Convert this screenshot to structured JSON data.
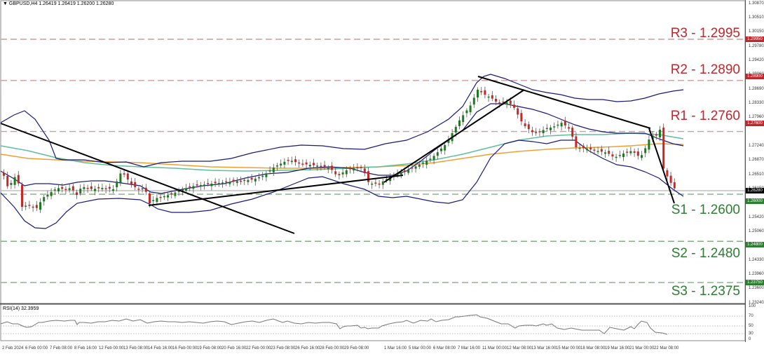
{
  "header": {
    "symbol_line": "GBPUSD,H4  1.26419 1.26419 1.26200 1.26280"
  },
  "rsi_panel": {
    "title": "RSI(14) 32.3959",
    "levels": [
      "100",
      "70",
      "50",
      "30",
      "0"
    ]
  },
  "colors": {
    "resistance": "#c0272d",
    "support": "#2e7d32",
    "bull_candle": "#1e7a1e",
    "bear_candle": "#c62828",
    "bollinger": "#1a1a7a",
    "ma_fast": "#5fbf9a",
    "ma_slow": "#f0a030",
    "trendline": "#000000",
    "current_price_box": "#000000",
    "rsi_line": "#777777"
  },
  "levels": [
    {
      "name": "R3",
      "label": "R3 - 1.2995",
      "price": 1.2995,
      "axis": "1.29950",
      "type": "resistance"
    },
    {
      "name": "R2",
      "label": "R2 - 1.2890",
      "price": 1.289,
      "axis": "1.28900",
      "type": "resistance"
    },
    {
      "name": "R1",
      "label": "R1 - 1.2760",
      "price": 1.276,
      "axis": "1.27600",
      "type": "resistance"
    },
    {
      "name": "S1",
      "label": "S1 - 1.2600",
      "price": 1.26,
      "axis": "1.26000",
      "type": "support"
    },
    {
      "name": "S2",
      "label": "S2 - 1.2480",
      "price": 1.248,
      "axis": "1.24800",
      "type": "support"
    },
    {
      "name": "S3",
      "label": "S3 - 1.2375",
      "price": 1.2375,
      "axis": "1.23750",
      "type": "support"
    }
  ],
  "current_price": {
    "value": 1.2628,
    "axis": "1.26280"
  },
  "price_axis_ticks": [
    "1.30870",
    "1.30510",
    "1.30150",
    "1.29780",
    "1.29420",
    "1.29060",
    "1.28690",
    "1.28330",
    "1.27960",
    "1.27240",
    "1.26870",
    "1.26510",
    "1.26150",
    "1.25780",
    "1.25420",
    "1.25060",
    "1.24690",
    "1.24330",
    "1.23960",
    "1.23600",
    "1.23240"
  ],
  "time_axis": [
    "2 Feb 2024",
    "6 Feb 00:00",
    "7 Feb 08:00",
    "8 Feb 16:00",
    "12 Feb 00:00",
    "13 Feb 08:00",
    "14 Feb 16:00",
    "16 Feb 00:00",
    "19 Feb 08:00",
    "20 Feb 16:00",
    "22 Feb 00:00",
    "23 Feb 08:00",
    "26 Feb 16:00",
    "28 Feb 00:00",
    "29 Feb 08:00",
    "1 Mar 16:00",
    "5 Mar 00:00",
    "6 Mar 08:00",
    "7 Mar 16:00",
    "11 Mar 00:00",
    "12 Mar 08:00",
    "13 Mar 16:00",
    "15 Mar 00:00",
    "18 Mar 08:00",
    "19 Mar 16:00",
    "21 Mar 00:00",
    "22 Mar 08:00"
  ],
  "chart_data": {
    "type": "candlestick",
    "title": "GBPUSD,H4",
    "ohlc_header": {
      "open": 1.26419,
      "high": 1.26419,
      "low": 1.262,
      "close": 1.2628
    },
    "xlabel": "",
    "ylabel": "",
    "ylim": [
      1.2324,
      1.3087
    ],
    "categories": [
      "2 Feb 2024",
      "6 Feb 00:00",
      "7 Feb 08:00",
      "8 Feb 16:00",
      "12 Feb 00:00",
      "13 Feb 08:00",
      "14 Feb 16:00",
      "16 Feb 00:00",
      "19 Feb 08:00",
      "20 Feb 16:00",
      "22 Feb 00:00",
      "23 Feb 08:00",
      "26 Feb 16:00",
      "28 Feb 00:00",
      "29 Feb 08:00",
      "1 Mar 16:00",
      "5 Mar 00:00",
      "6 Mar 08:00",
      "7 Mar 16:00",
      "11 Mar 00:00",
      "12 Mar 08:00",
      "13 Mar 16:00",
      "15 Mar 00:00",
      "18 Mar 08:00",
      "19 Mar 16:00",
      "21 Mar 00:00",
      "22 Mar 08:00"
    ],
    "series": [
      {
        "name": "Close (approx)",
        "values": [
          1.264,
          1.2545,
          1.2615,
          1.263,
          1.264,
          1.262,
          1.256,
          1.2585,
          1.26,
          1.263,
          1.266,
          1.267,
          1.268,
          1.2635,
          1.2625,
          1.266,
          1.27,
          1.276,
          1.286,
          1.28,
          1.28,
          1.278,
          1.275,
          1.272,
          1.272,
          1.279,
          1.2628
        ]
      },
      {
        "name": "RSI(14) (approx)",
        "values": [
          45,
          35,
          50,
          52,
          52,
          45,
          40,
          48,
          55,
          58,
          60,
          62,
          55,
          45,
          48,
          60,
          65,
          75,
          85,
          70,
          60,
          55,
          50,
          45,
          45,
          60,
          32
        ]
      }
    ],
    "horizontal_levels": {
      "R3": 1.2995,
      "R2": 1.289,
      "R1": 1.276,
      "S1": 1.26,
      "S2": 1.248,
      "S3": 1.2375
    },
    "indicators": [
      "Bollinger Bands",
      "Moving Average (fast, green)",
      "Moving Average (slow, orange)",
      "RSI(14)"
    ],
    "rsi_levels": [
      70,
      50,
      30
    ],
    "rsi_ylim": [
      0,
      100
    ],
    "grid": false,
    "legend": "none"
  }
}
